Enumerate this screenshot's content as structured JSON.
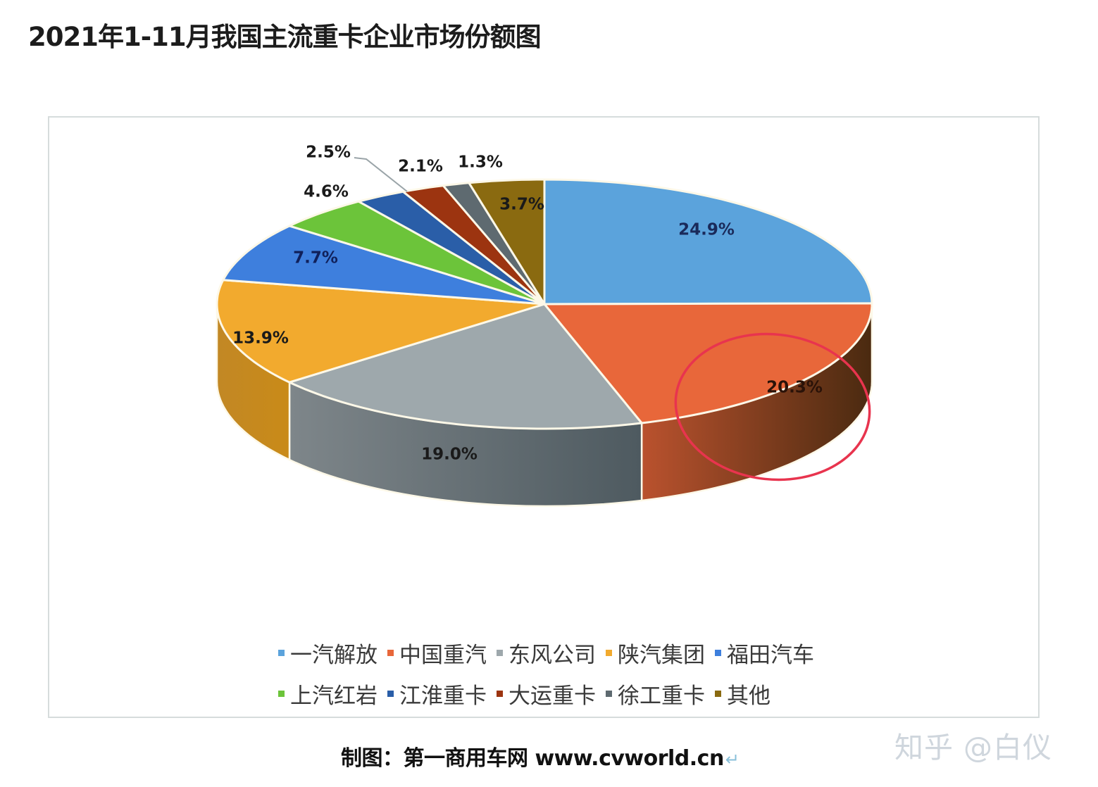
{
  "title": "2021年1-11月我国主流重卡企业市场份额图",
  "source": "制图：第一商用车网 www.cvworld.cn",
  "source_return_mark": "↵",
  "watermark": "知乎 @白仪",
  "legend": {
    "rows": [
      [
        {
          "label": "一汽解放",
          "color": "#5ba3dc"
        },
        {
          "label": "中国重汽",
          "color": "#e8673a"
        },
        {
          "label": "东风公司",
          "color": "#9ea8ac"
        },
        {
          "label": "陕汽集团",
          "color": "#f2aa2e"
        },
        {
          "label": "福田汽车",
          "color": "#3e7fdd"
        }
      ],
      [
        {
          "label": "上汽红岩",
          "color": "#6cc43a"
        },
        {
          "label": "江淮重卡",
          "color": "#2a5ea8"
        },
        {
          "label": "大运重卡",
          "color": "#9c3410"
        },
        {
          "label": "徐工重卡",
          "color": "#5e6a70"
        },
        {
          "label": "其他",
          "color": "#8a6a10"
        }
      ]
    ]
  },
  "annotation": {
    "type": "red-ellipse",
    "target": "中国重汽",
    "color": "#e8344e"
  },
  "chart_data": {
    "type": "pie",
    "variant": "3d-pie",
    "title": "2021年1-11月我国主流重卡企业市场份额图",
    "categories": [
      "一汽解放",
      "中国重汽",
      "东风公司",
      "陕汽集团",
      "福田汽车",
      "上汽红岩",
      "江淮重卡",
      "大运重卡",
      "徐工重卡",
      "其他"
    ],
    "values": [
      24.9,
      20.3,
      19.0,
      13.9,
      7.7,
      4.6,
      2.5,
      2.1,
      1.3,
      3.7
    ],
    "labels": [
      "24.9%",
      "20.3%",
      "19.0%",
      "13.9%",
      "7.7%",
      "4.6%",
      "2.5%",
      "2.1%",
      "1.3%",
      "3.7%"
    ],
    "colors": [
      "#5ba3dc",
      "#e8673a",
      "#9ea8ac",
      "#f2aa2e",
      "#3e7fdd",
      "#6cc43a",
      "#2a5ea8",
      "#9c3410",
      "#5e6a70",
      "#8a6a10"
    ],
    "unit": "%",
    "legend_position": "bottom",
    "start_angle": "12 o'clock, clockwise",
    "highlighted": "中国重汽"
  }
}
